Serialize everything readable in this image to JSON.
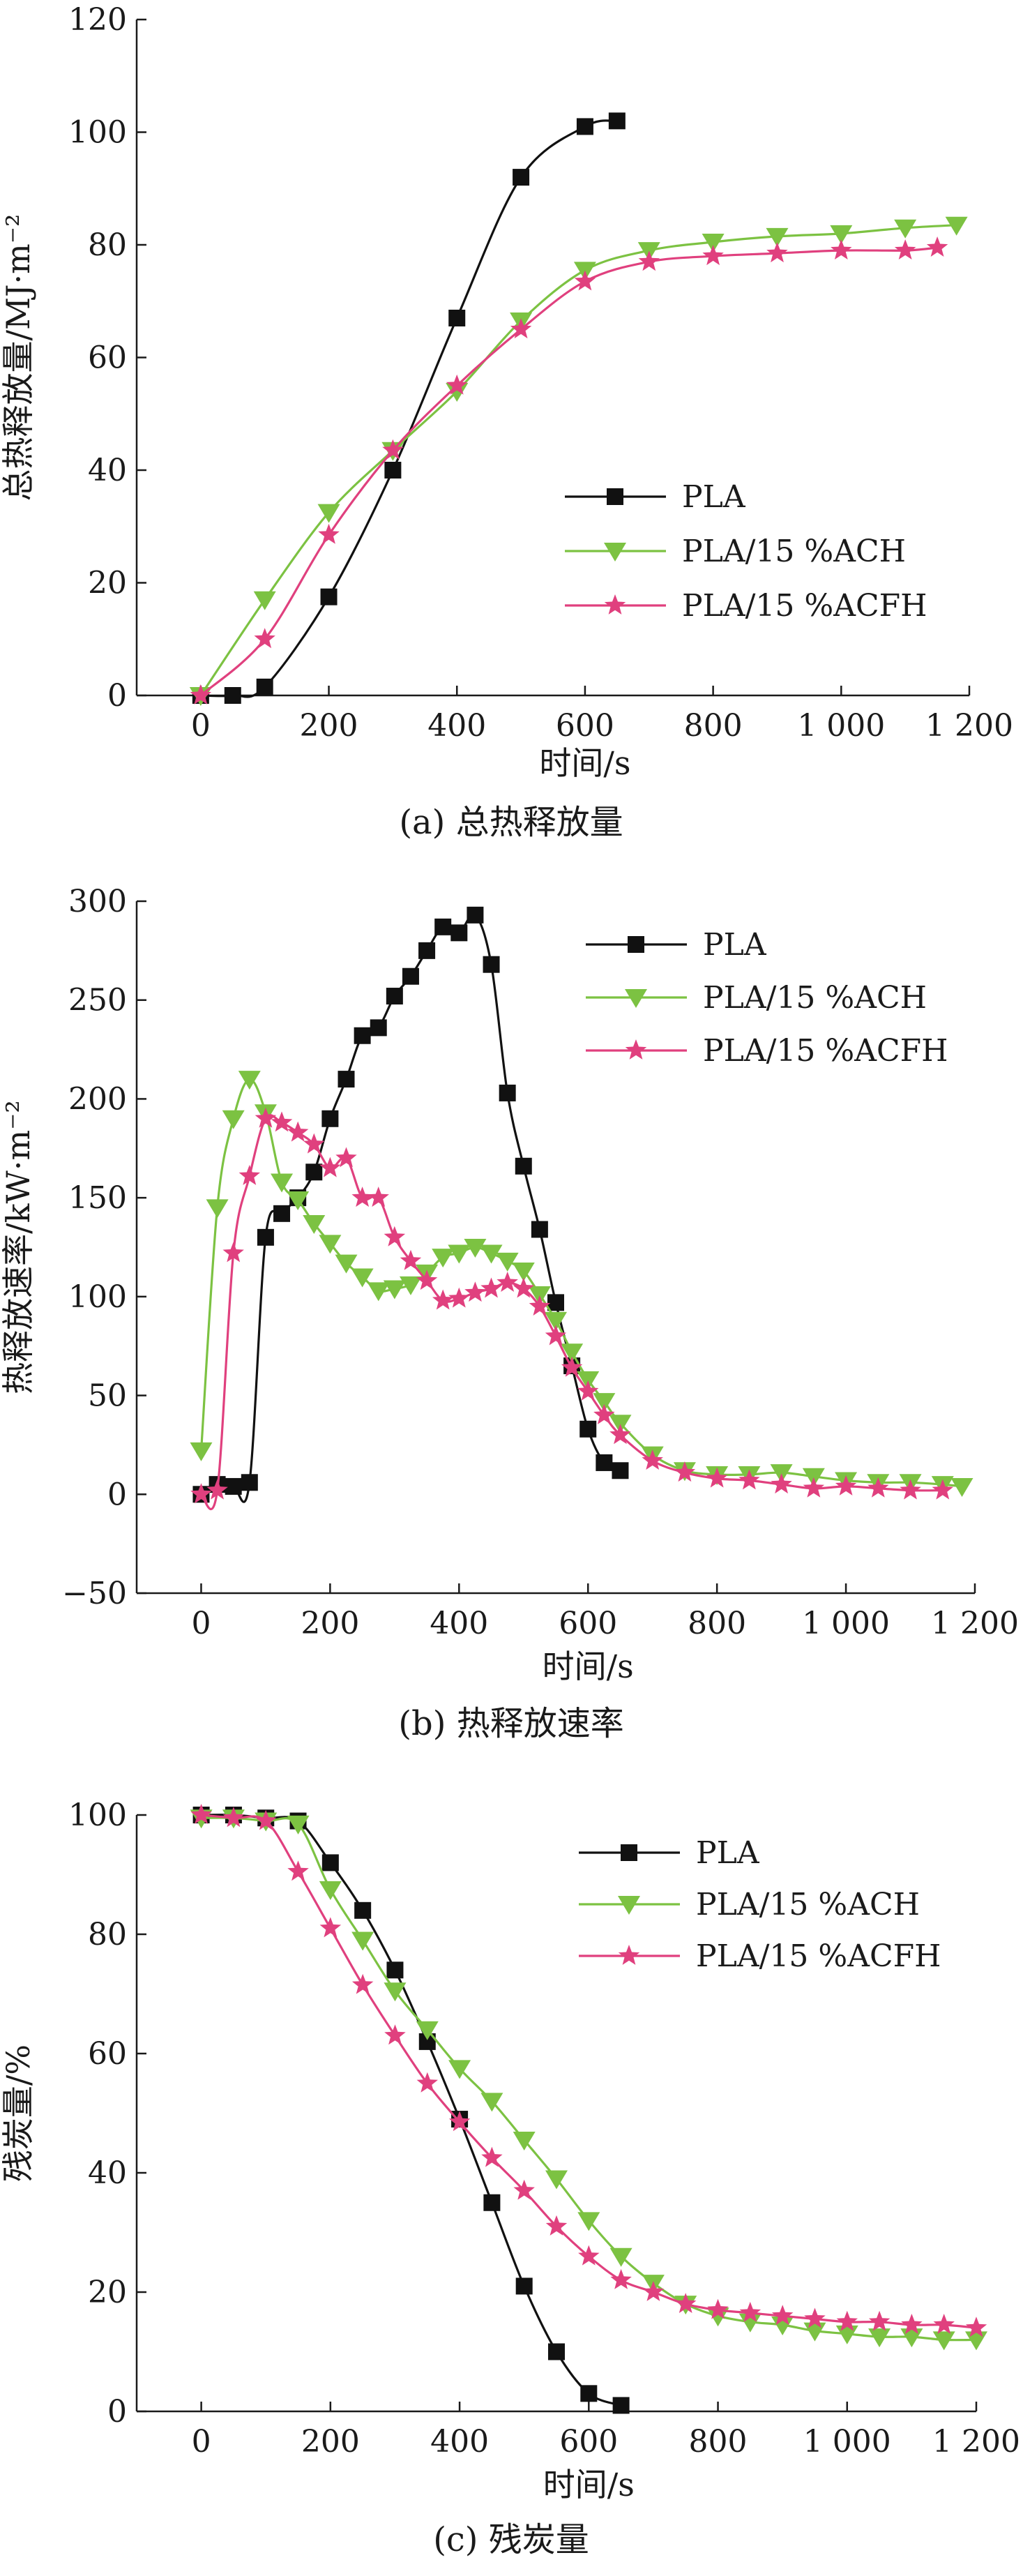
{
  "colors": {
    "PLA": "#111111",
    "PLA/15 %ACH": "#7cc242",
    "PLA/15 %ACFH": "#e0407e"
  },
  "chart_data": [
    {
      "type": "line",
      "caption": "(a) 总热释放量",
      "xlabel": "时间/s",
      "ylabel": "总热释放量/MJ·m⁻²",
      "xlim": [
        -100,
        1200
      ],
      "ylim": [
        0,
        120
      ],
      "xticks": [
        0,
        200,
        400,
        600,
        800,
        1000,
        1200
      ],
      "xtick_labels": [
        "0",
        "200",
        "400",
        "600",
        "800",
        "1 000",
        "1 200"
      ],
      "yticks": [
        0,
        20,
        40,
        60,
        80,
        100,
        120
      ],
      "ytick_labels": [
        "0",
        "20",
        "40",
        "60",
        "80",
        "100",
        "120"
      ],
      "grid": false,
      "legend_position": "middle-right",
      "series": [
        {
          "name": "PLA",
          "marker": "square",
          "x": [
            0,
            50,
            100,
            200,
            300,
            400,
            500,
            600,
            650
          ],
          "y": [
            0,
            0,
            1.5,
            17.5,
            40,
            67,
            92,
            101,
            102
          ]
        },
        {
          "name": "PLA/15 %ACH",
          "marker": "triangle-down",
          "x": [
            0,
            100,
            200,
            300,
            400,
            500,
            600,
            700,
            800,
            900,
            1000,
            1100,
            1180
          ],
          "y": [
            0,
            17,
            32.5,
            43.5,
            54,
            66.5,
            75.5,
            79,
            80.5,
            81.5,
            82,
            83,
            83.5
          ]
        },
        {
          "name": "PLA/15 %ACFH",
          "marker": "star",
          "x": [
            0,
            100,
            200,
            300,
            400,
            500,
            600,
            700,
            800,
            900,
            1000,
            1100,
            1150
          ],
          "y": [
            0,
            10,
            28.5,
            43.5,
            55,
            65,
            73.5,
            77,
            78,
            78.5,
            79,
            79,
            79.5
          ]
        }
      ]
    },
    {
      "type": "line",
      "caption": "(b) 热释放速率",
      "xlabel": "时间/s",
      "ylabel": "热释放速率/kW·m⁻²",
      "xlim": [
        -100,
        1200
      ],
      "ylim": [
        -50,
        300
      ],
      "xticks": [
        0,
        200,
        400,
        600,
        800,
        1000,
        1200
      ],
      "xtick_labels": [
        "0",
        "200",
        "400",
        "600",
        "800",
        "1 000",
        "1 200"
      ],
      "yticks": [
        -50,
        0,
        50,
        100,
        150,
        200,
        250,
        300
      ],
      "ytick_labels": [
        "−50",
        "0",
        "50",
        "100",
        "150",
        "200",
        "250",
        "300"
      ],
      "grid": false,
      "legend_position": "top-right",
      "series": [
        {
          "name": "PLA",
          "marker": "square",
          "x": [
            0,
            25,
            50,
            75,
            100,
            125,
            150,
            175,
            200,
            225,
            250,
            275,
            300,
            325,
            350,
            375,
            400,
            425,
            450,
            475,
            500,
            525,
            550,
            575,
            600,
            625,
            650
          ],
          "y": [
            0,
            5,
            4,
            6,
            130,
            142,
            150,
            163,
            190,
            210,
            232,
            236,
            252,
            262,
            275,
            287,
            284,
            293,
            268,
            203,
            166,
            134,
            97,
            65,
            33,
            16,
            12
          ]
        },
        {
          "name": "PLA/15 %ACH",
          "marker": "triangle-down",
          "x": [
            0,
            25,
            50,
            75,
            100,
            125,
            150,
            175,
            200,
            225,
            250,
            275,
            300,
            325,
            350,
            375,
            400,
            425,
            450,
            475,
            500,
            525,
            550,
            575,
            600,
            625,
            650,
            700,
            750,
            800,
            850,
            900,
            950,
            1000,
            1050,
            1100,
            1150,
            1180
          ],
          "y": [
            22,
            145,
            190,
            210,
            193,
            158,
            149,
            137,
            127,
            117,
            110,
            103,
            104,
            106,
            112,
            120,
            122,
            125,
            122,
            118,
            113,
            101,
            88,
            72,
            58,
            47,
            36,
            20,
            12,
            10,
            10,
            11,
            9,
            7,
            6,
            6,
            5,
            4
          ]
        },
        {
          "name": "PLA/15 %ACFH",
          "marker": "star",
          "x": [
            0,
            25,
            50,
            75,
            100,
            125,
            150,
            175,
            200,
            225,
            250,
            275,
            300,
            325,
            350,
            375,
            400,
            425,
            450,
            475,
            500,
            525,
            550,
            575,
            600,
            625,
            650,
            700,
            750,
            800,
            850,
            900,
            950,
            1000,
            1050,
            1100,
            1150
          ],
          "y": [
            0,
            2,
            122,
            161,
            190,
            188,
            183,
            177,
            165,
            170,
            150,
            150,
            130,
            118,
            108,
            98,
            99,
            102,
            104,
            107,
            104,
            95,
            80,
            64,
            52,
            40,
            30,
            17,
            11,
            8,
            7,
            5,
            3,
            4,
            3,
            2,
            2
          ]
        }
      ]
    },
    {
      "type": "line",
      "caption": "(c) 残炭量",
      "xlabel": "时间/s",
      "ylabel": "残炭量/%",
      "xlim": [
        -100,
        1200
      ],
      "ylim": [
        0,
        100
      ],
      "xticks": [
        0,
        200,
        400,
        600,
        800,
        1000,
        1200
      ],
      "xtick_labels": [
        "0",
        "200",
        "400",
        "600",
        "800",
        "1 000",
        "1 200"
      ],
      "yticks": [
        0,
        20,
        40,
        60,
        80,
        100
      ],
      "ytick_labels": [
        "0",
        "20",
        "40",
        "60",
        "80",
        "100"
      ],
      "grid": false,
      "legend_position": "top-right",
      "series": [
        {
          "name": "PLA",
          "marker": "square",
          "x": [
            0,
            50,
            100,
            150,
            200,
            250,
            300,
            350,
            400,
            450,
            500,
            550,
            600,
            650
          ],
          "y": [
            100,
            100,
            99.5,
            99,
            92,
            84,
            74,
            62,
            49,
            35,
            21,
            10,
            3,
            1
          ]
        },
        {
          "name": "PLA/15 %ACH",
          "marker": "triangle-down",
          "x": [
            0,
            50,
            100,
            150,
            200,
            250,
            300,
            350,
            400,
            450,
            500,
            550,
            600,
            650,
            700,
            750,
            800,
            850,
            900,
            950,
            1000,
            1050,
            1100,
            1150,
            1200
          ],
          "y": [
            99.5,
            99.5,
            99,
            98.5,
            87.5,
            79,
            70.5,
            64,
            57.5,
            52,
            45.5,
            39,
            32,
            26,
            21.5,
            18,
            16,
            15,
            14.5,
            13.5,
            13,
            12.5,
            12.5,
            12,
            12
          ]
        },
        {
          "name": "PLA/15 %ACFH",
          "marker": "star",
          "x": [
            0,
            50,
            100,
            150,
            200,
            250,
            300,
            350,
            400,
            450,
            500,
            550,
            600,
            650,
            700,
            750,
            800,
            850,
            900,
            950,
            1000,
            1050,
            1100,
            1150,
            1200
          ],
          "y": [
            100,
            99.5,
            99,
            90.5,
            81,
            71.5,
            63,
            55,
            48.5,
            42.5,
            37,
            31,
            26,
            22,
            20,
            18,
            17,
            16.5,
            16,
            15.5,
            15,
            15,
            14.5,
            14.5,
            14
          ]
        }
      ]
    }
  ]
}
